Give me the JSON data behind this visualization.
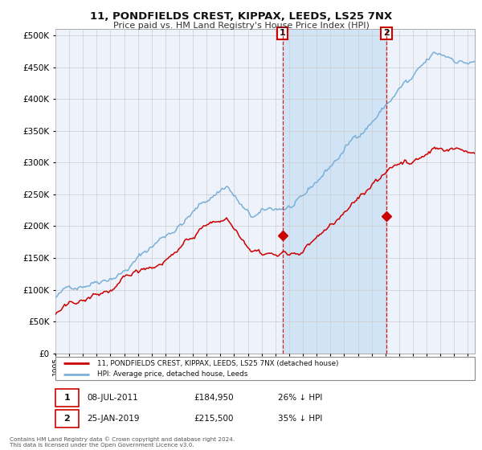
{
  "title": "11, PONDFIELDS CREST, KIPPAX, LEEDS, LS25 7NX",
  "subtitle": "Price paid vs. HM Land Registry's House Price Index (HPI)",
  "background_color": "#ffffff",
  "plot_bg_color": "#eef2fa",
  "grid_color": "#cccccc",
  "hpi_color": "#7ab0d8",
  "price_color": "#cc0000",
  "shade_color": "#d0e4f5",
  "transaction1_date": 2011.52,
  "transaction1_price": 184950,
  "transaction2_date": 2019.07,
  "transaction2_price": 215500,
  "legend_property_label": "11, PONDFIELDS CREST, KIPPAX, LEEDS, LS25 7NX (detached house)",
  "legend_hpi_label": "HPI: Average price, detached house, Leeds",
  "footer_text": "Contains HM Land Registry data © Crown copyright and database right 2024.\nThis data is licensed under the Open Government Licence v3.0.",
  "ylim": [
    0,
    510000
  ],
  "xlim_start": 1995.0,
  "xlim_end": 2025.5
}
